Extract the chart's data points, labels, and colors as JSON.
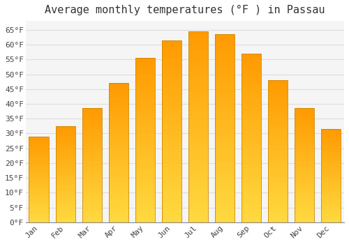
{
  "title": "Average monthly temperatures (°F ) in Passau",
  "months": [
    "Jan",
    "Feb",
    "Mar",
    "Apr",
    "May",
    "Jun",
    "Jul",
    "Aug",
    "Sep",
    "Oct",
    "Nov",
    "Dec"
  ],
  "values": [
    29,
    32.5,
    38.5,
    47,
    55.5,
    61.5,
    64.5,
    63.5,
    57,
    48,
    38.5,
    31.5
  ],
  "bar_color_top": "#FFD060",
  "bar_color_bottom": "#FFA500",
  "bar_edge_color": "#CC8800",
  "background_color": "#FFFFFF",
  "plot_bg_color": "#F5F5F5",
  "grid_color": "#DDDDDD",
  "ylim": [
    0,
    68
  ],
  "yticks": [
    0,
    5,
    10,
    15,
    20,
    25,
    30,
    35,
    40,
    45,
    50,
    55,
    60,
    65
  ],
  "title_fontsize": 11,
  "tick_fontsize": 8,
  "font_family": "monospace"
}
